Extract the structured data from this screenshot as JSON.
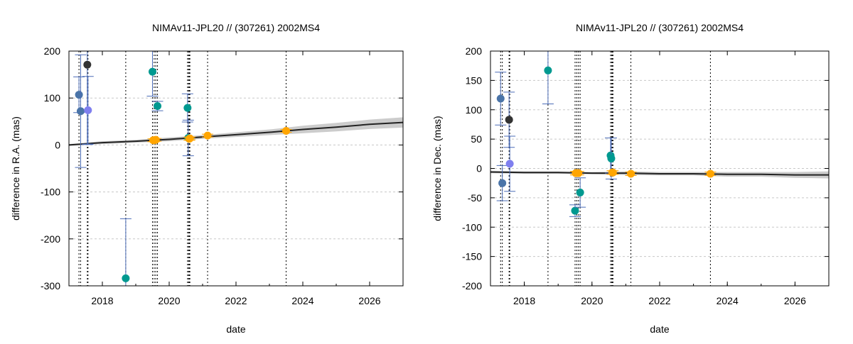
{
  "chart_data": [
    {
      "type": "scatter",
      "title": "NIMAv11-JPL20 // (307261) 2002MS4",
      "xlabel": "date",
      "ylabel": "difference in R.A. (mas)",
      "xlim": [
        2017.0,
        2027.0
      ],
      "ylim": [
        -300,
        200
      ],
      "yticks": [
        -300,
        -200,
        -100,
        0,
        100,
        200
      ],
      "xticks": [
        2018,
        2020,
        2022,
        2024,
        2026
      ],
      "grid": "horizontal dashed",
      "event_dates": [
        2017.3,
        2017.35,
        2017.55,
        2017.57,
        2018.7,
        2019.5,
        2019.55,
        2019.6,
        2019.65,
        2020.55,
        2020.58,
        2020.6,
        2020.62,
        2021.15,
        2023.5
      ],
      "model_band": {
        "x": [
          2017.0,
          2018.0,
          2019.0,
          2020.0,
          2021.0,
          2022.0,
          2023.0,
          2024.0,
          2025.0,
          2026.0,
          2027.0
        ],
        "y": [
          0,
          5,
          8,
          12,
          17,
          22,
          27,
          33,
          38,
          44,
          48
        ],
        "uncertainty": [
          2,
          3,
          3,
          4,
          4,
          5,
          6,
          8,
          9,
          10,
          11
        ]
      },
      "points": [
        {
          "x": 2017.3,
          "y": 107,
          "err": 38,
          "color": "#4a74a8"
        },
        {
          "x": 2017.35,
          "y": 72,
          "err": 120,
          "color": "#4a74a8"
        },
        {
          "x": 2017.55,
          "y": 171,
          "err": 170,
          "color": "#333333"
        },
        {
          "x": 2017.57,
          "y": 74,
          "err": 72,
          "color": "#7f7fef"
        },
        {
          "x": 2018.7,
          "y": -284,
          "err": 127,
          "color": "#009990"
        },
        {
          "x": 2019.5,
          "y": 156,
          "err": 52,
          "color": "#009990"
        },
        {
          "x": 2019.52,
          "y": 10,
          "err": 3,
          "color": "#ffa500"
        },
        {
          "x": 2019.55,
          "y": 10,
          "err": 3,
          "color": "#ffa500"
        },
        {
          "x": 2019.6,
          "y": 11,
          "err": 3,
          "color": "#ffa500"
        },
        {
          "x": 2019.65,
          "y": 83,
          "err": 10,
          "color": "#009990"
        },
        {
          "x": 2020.55,
          "y": 79,
          "err": 30,
          "color": "#009990"
        },
        {
          "x": 2020.57,
          "y": 15,
          "err": 38,
          "color": "#009990"
        },
        {
          "x": 2020.6,
          "y": 13,
          "err": 3,
          "color": "#ffa500"
        },
        {
          "x": 2020.62,
          "y": 14,
          "err": 3,
          "color": "#ffa500"
        },
        {
          "x": 2021.15,
          "y": 20,
          "err": 3,
          "color": "#ffa500"
        },
        {
          "x": 2023.5,
          "y": 30,
          "err": 3,
          "color": "#ffa500"
        }
      ]
    },
    {
      "type": "scatter",
      "title": "NIMAv11-JPL20 // (307261) 2002MS4",
      "xlabel": "date",
      "ylabel": "difference in Dec. (mas)",
      "xlim": [
        2017.0,
        2027.0
      ],
      "ylim": [
        -200,
        200
      ],
      "yticks": [
        -200,
        -150,
        -100,
        -50,
        0,
        50,
        100,
        150,
        200
      ],
      "xticks": [
        2018,
        2020,
        2022,
        2024,
        2026
      ],
      "grid": "horizontal dashed",
      "event_dates": [
        2017.3,
        2017.35,
        2017.55,
        2017.57,
        2018.7,
        2019.5,
        2019.55,
        2019.6,
        2019.65,
        2020.55,
        2020.58,
        2020.6,
        2020.62,
        2021.15,
        2023.5
      ],
      "model_band": {
        "x": [
          2017.0,
          2018.0,
          2019.0,
          2020.0,
          2021.0,
          2022.0,
          2023.0,
          2024.0,
          2025.0,
          2026.0,
          2027.0
        ],
        "y": [
          -6,
          -7,
          -7,
          -8,
          -8,
          -9,
          -9,
          -10,
          -10,
          -11,
          -11
        ],
        "uncertainty": [
          2,
          2,
          2,
          2,
          3,
          3,
          3,
          4,
          4,
          5,
          6
        ]
      },
      "points": [
        {
          "x": 2017.3,
          "y": 119,
          "err": 45,
          "color": "#4a74a8"
        },
        {
          "x": 2017.35,
          "y": -25,
          "err": 30,
          "color": "#4a74a8"
        },
        {
          "x": 2017.55,
          "y": 83,
          "err": 47,
          "color": "#333333"
        },
        {
          "x": 2017.57,
          "y": 8,
          "err": 47,
          "color": "#7f7fef"
        },
        {
          "x": 2018.7,
          "y": 167,
          "err": 57,
          "color": "#009990"
        },
        {
          "x": 2019.5,
          "y": -72,
          "err": 10,
          "color": "#009990"
        },
        {
          "x": 2019.52,
          "y": -8,
          "err": 3,
          "color": "#ffa500"
        },
        {
          "x": 2019.55,
          "y": -8,
          "err": 3,
          "color": "#ffa500"
        },
        {
          "x": 2019.6,
          "y": -8,
          "err": 3,
          "color": "#ffa500"
        },
        {
          "x": 2019.65,
          "y": -41,
          "err": 25,
          "color": "#009990"
        },
        {
          "x": 2020.55,
          "y": 22,
          "err": 30,
          "color": "#009990"
        },
        {
          "x": 2020.57,
          "y": 17,
          "err": 35,
          "color": "#009990"
        },
        {
          "x": 2020.6,
          "y": -7,
          "err": 3,
          "color": "#ffa500"
        },
        {
          "x": 2020.62,
          "y": -7,
          "err": 3,
          "color": "#ffa500"
        },
        {
          "x": 2021.15,
          "y": -9,
          "err": 3,
          "color": "#ffa500"
        },
        {
          "x": 2023.5,
          "y": -9,
          "err": 3,
          "color": "#ffa500"
        }
      ]
    }
  ]
}
